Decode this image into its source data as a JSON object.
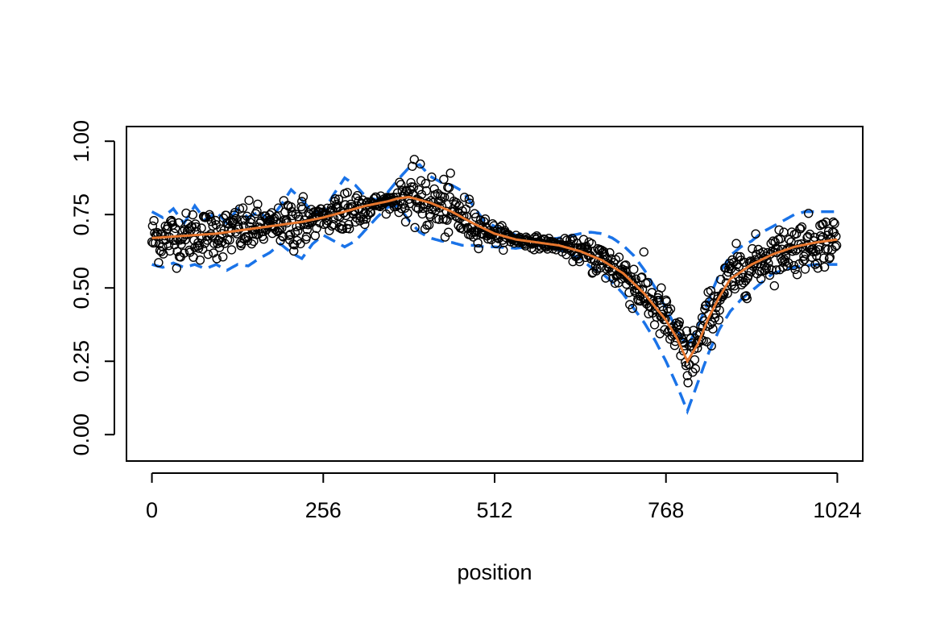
{
  "chart_data": {
    "type": "scatter",
    "title": "",
    "xlabel": "position",
    "ylabel": "",
    "xlim": [
      -38,
      1062
    ],
    "ylim": [
      -0.09,
      1.05
    ],
    "x_ticks": [
      0,
      256,
      512,
      768,
      1024
    ],
    "x_tick_labels": [
      "0",
      "256",
      "512",
      "768",
      "1024"
    ],
    "y_ticks": [
      0.0,
      0.25,
      0.5,
      0.75,
      1.0
    ],
    "y_tick_labels": [
      "0.00",
      "0.25",
      "0.50",
      "0.75",
      "1.00"
    ],
    "grid": false,
    "legend": "none",
    "n_points": 1024,
    "colors": {
      "points": "#000000",
      "fitted_line": "#e8772e",
      "bands": "#1a73e8"
    },
    "fitted_curve": {
      "x": [
        0,
        32,
        64,
        96,
        128,
        160,
        192,
        224,
        256,
        288,
        320,
        352,
        368,
        384,
        416,
        448,
        480,
        512,
        544,
        576,
        608,
        640,
        672,
        704,
        736,
        768,
        784,
        800,
        816,
        832,
        848,
        864,
        896,
        928,
        960,
        992,
        1024
      ],
      "y": [
        0.67,
        0.675,
        0.68,
        0.685,
        0.695,
        0.705,
        0.715,
        0.725,
        0.74,
        0.76,
        0.78,
        0.795,
        0.805,
        0.81,
        0.79,
        0.76,
        0.72,
        0.685,
        0.665,
        0.655,
        0.645,
        0.625,
        0.595,
        0.55,
        0.48,
        0.39,
        0.33,
        0.25,
        0.31,
        0.4,
        0.47,
        0.53,
        0.58,
        0.615,
        0.64,
        0.655,
        0.665
      ]
    },
    "upper_band": {
      "x": [
        0,
        16,
        32,
        48,
        64,
        80,
        96,
        112,
        128,
        144,
        160,
        176,
        192,
        208,
        224,
        240,
        256,
        272,
        288,
        304,
        320,
        336,
        352,
        368,
        384,
        400,
        416,
        432,
        448,
        464,
        480,
        496,
        512,
        544,
        576,
        608,
        640,
        656,
        672,
        688,
        704,
        720,
        736,
        752,
        768,
        784,
        800,
        816,
        832,
        848,
        864,
        880,
        896,
        912,
        928,
        944,
        960,
        976,
        992,
        1008,
        1024
      ],
      "y": [
        0.76,
        0.74,
        0.77,
        0.72,
        0.78,
        0.73,
        0.76,
        0.72,
        0.77,
        0.74,
        0.76,
        0.73,
        0.78,
        0.835,
        0.8,
        0.76,
        0.76,
        0.82,
        0.875,
        0.85,
        0.81,
        0.8,
        0.825,
        0.87,
        0.91,
        0.92,
        0.88,
        0.86,
        0.85,
        0.83,
        0.78,
        0.73,
        0.71,
        0.68,
        0.66,
        0.67,
        0.685,
        0.69,
        0.685,
        0.67,
        0.645,
        0.61,
        0.56,
        0.5,
        0.43,
        0.36,
        0.3,
        0.37,
        0.46,
        0.55,
        0.61,
        0.64,
        0.66,
        0.69,
        0.71,
        0.73,
        0.75,
        0.76,
        0.76,
        0.76,
        0.76
      ]
    },
    "lower_band": {
      "x": [
        0,
        16,
        32,
        48,
        64,
        80,
        96,
        112,
        128,
        144,
        160,
        176,
        192,
        208,
        224,
        240,
        256,
        272,
        288,
        304,
        320,
        336,
        352,
        368,
        384,
        400,
        416,
        432,
        448,
        464,
        480,
        496,
        512,
        544,
        576,
        608,
        640,
        656,
        672,
        688,
        704,
        720,
        736,
        752,
        768,
        784,
        800,
        816,
        832,
        848,
        864,
        880,
        896,
        912,
        928,
        944,
        960,
        976,
        992,
        1008,
        1024
      ],
      "y": [
        0.58,
        0.57,
        0.585,
        0.57,
        0.58,
        0.565,
        0.58,
        0.56,
        0.58,
        0.575,
        0.6,
        0.62,
        0.65,
        0.62,
        0.6,
        0.65,
        0.68,
        0.66,
        0.64,
        0.66,
        0.7,
        0.74,
        0.775,
        0.78,
        0.73,
        0.69,
        0.67,
        0.66,
        0.655,
        0.645,
        0.645,
        0.64,
        0.64,
        0.635,
        0.645,
        0.63,
        0.6,
        0.57,
        0.55,
        0.52,
        0.48,
        0.43,
        0.38,
        0.32,
        0.25,
        0.17,
        0.08,
        0.18,
        0.28,
        0.36,
        0.42,
        0.46,
        0.49,
        0.52,
        0.55,
        0.56,
        0.57,
        0.575,
        0.58,
        0.58,
        0.58
      ]
    }
  }
}
